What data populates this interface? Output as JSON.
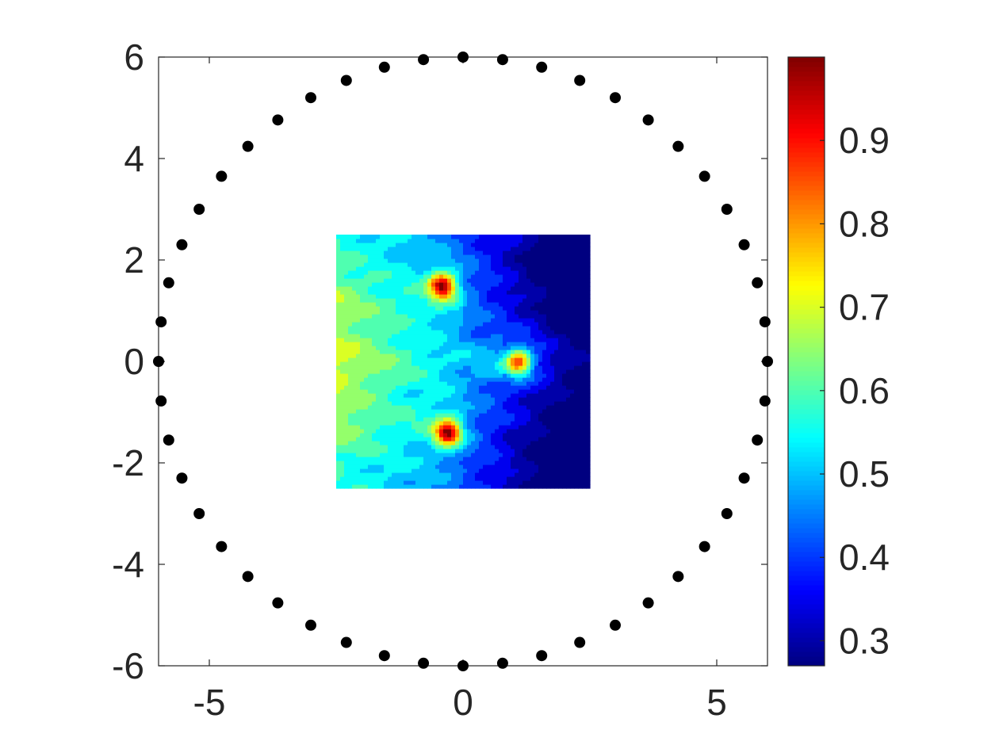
{
  "chart_data": {
    "type": "heatmap",
    "title": "",
    "xlabel": "",
    "ylabel": "",
    "xlim": [
      -6,
      6
    ],
    "ylim": [
      -6,
      6
    ],
    "x_ticks": [
      -5,
      0,
      5
    ],
    "y_ticks": [
      -6,
      -4,
      -2,
      0,
      2,
      4,
      6
    ],
    "x_tick_labels": [
      "-5",
      "0",
      "5"
    ],
    "y_tick_labels": [
      "-6",
      "-4",
      "-2",
      "0",
      "2",
      "4",
      "6"
    ],
    "grid": false,
    "colormap": "jet",
    "colorbar": {
      "location": "right",
      "range": [
        0.27,
        1.0
      ],
      "ticks": [
        0.3,
        0.4,
        0.5,
        0.6,
        0.7,
        0.8,
        0.9
      ],
      "tick_labels": [
        "0.3",
        "0.4",
        "0.5",
        "0.6",
        "0.7",
        "0.8",
        "0.9"
      ]
    },
    "heatmap": {
      "x_range": [
        -2.5,
        2.5
      ],
      "y_range": [
        -2.5,
        2.5
      ],
      "background_level": 0.55,
      "peaks": [
        {
          "x": -0.4,
          "y": 1.5,
          "value": 1.0
        },
        {
          "x": 1.1,
          "y": 0.0,
          "value": 0.97
        },
        {
          "x": -0.3,
          "y": -1.4,
          "value": 1.0
        }
      ]
    },
    "scatter": {
      "name": "",
      "color": "#000000",
      "points": [
        {
          "x": 6.0,
          "y": 0.0
        },
        {
          "x": 5.95,
          "y": 0.78
        },
        {
          "x": 5.8,
          "y": 1.55
        },
        {
          "x": 5.54,
          "y": 2.3
        },
        {
          "x": 5.2,
          "y": 3.0
        },
        {
          "x": 4.76,
          "y": 3.65
        },
        {
          "x": 4.24,
          "y": 4.24
        },
        {
          "x": 3.65,
          "y": 4.76
        },
        {
          "x": 3.0,
          "y": 5.2
        },
        {
          "x": 2.3,
          "y": 5.54
        },
        {
          "x": 1.55,
          "y": 5.8
        },
        {
          "x": 0.78,
          "y": 5.95
        },
        {
          "x": 0.0,
          "y": 6.0
        },
        {
          "x": -0.78,
          "y": 5.95
        },
        {
          "x": -1.55,
          "y": 5.8
        },
        {
          "x": -2.3,
          "y": 5.54
        },
        {
          "x": -3.0,
          "y": 5.2
        },
        {
          "x": -3.65,
          "y": 4.76
        },
        {
          "x": -4.24,
          "y": 4.24
        },
        {
          "x": -4.76,
          "y": 3.65
        },
        {
          "x": -5.2,
          "y": 3.0
        },
        {
          "x": -5.54,
          "y": 2.3
        },
        {
          "x": -5.8,
          "y": 1.55
        },
        {
          "x": -5.95,
          "y": 0.78
        },
        {
          "x": -6.0,
          "y": 0.0
        },
        {
          "x": -5.95,
          "y": -0.78
        },
        {
          "x": -5.8,
          "y": -1.55
        },
        {
          "x": -5.54,
          "y": -2.3
        },
        {
          "x": -5.2,
          "y": -3.0
        },
        {
          "x": -4.76,
          "y": -3.65
        },
        {
          "x": -4.24,
          "y": -4.24
        },
        {
          "x": -3.65,
          "y": -4.76
        },
        {
          "x": -3.0,
          "y": -5.2
        },
        {
          "x": -2.3,
          "y": -5.54
        },
        {
          "x": -1.55,
          "y": -5.8
        },
        {
          "x": -0.78,
          "y": -5.95
        },
        {
          "x": 0.0,
          "y": -6.0
        },
        {
          "x": 0.78,
          "y": -5.95
        },
        {
          "x": 1.55,
          "y": -5.8
        },
        {
          "x": 2.3,
          "y": -5.54
        },
        {
          "x": 3.0,
          "y": -5.2
        },
        {
          "x": 3.65,
          "y": -4.76
        },
        {
          "x": 4.24,
          "y": -4.24
        },
        {
          "x": 4.76,
          "y": -3.65
        },
        {
          "x": 5.2,
          "y": -3.0
        },
        {
          "x": 5.54,
          "y": -2.3
        },
        {
          "x": 5.8,
          "y": -1.55
        },
        {
          "x": 5.95,
          "y": -0.78
        }
      ]
    }
  }
}
